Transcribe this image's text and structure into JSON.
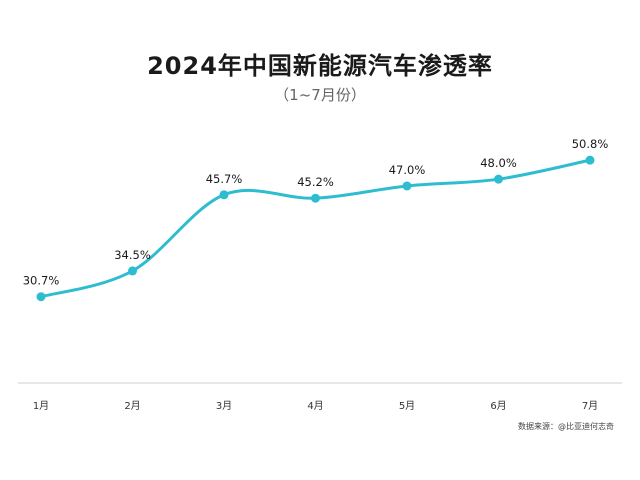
{
  "chart_data": {
    "type": "line",
    "title": "2024年中国新能源汽车渗透率",
    "subtitle": "（1~7月份）",
    "categories": [
      "1月",
      "2月",
      "3月",
      "4月",
      "5月",
      "6月",
      "7月"
    ],
    "series": [
      {
        "values": [
          30.7,
          34.5,
          45.7,
          45.2,
          47.0,
          48.0,
          50.8
        ],
        "labels": [
          "30.7%",
          "34.5%",
          "45.7%",
          "45.2%",
          "47.0%",
          "48.0%",
          "50.8%"
        ],
        "color": "#2ebdd0"
      }
    ],
    "ylim": [
      18,
      52
    ],
    "grid": false,
    "legend": "none",
    "source": "数据来源：@比亚迪何志奇"
  }
}
